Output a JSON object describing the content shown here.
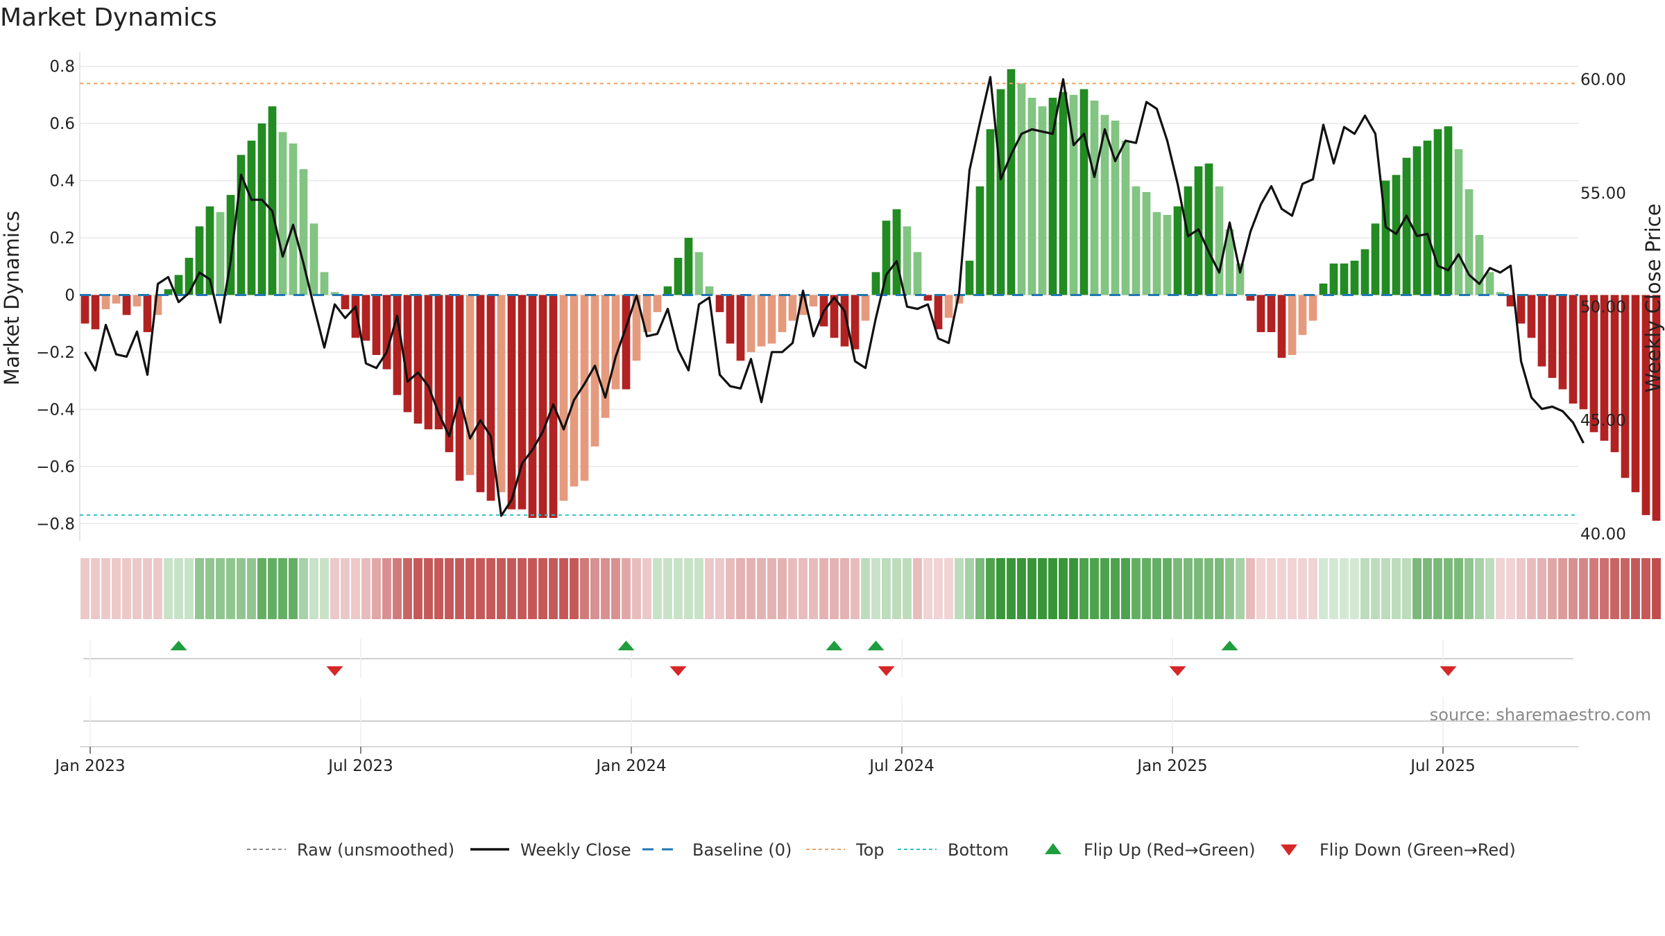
{
  "chart_data": {
    "type": "bar",
    "title": "Market Dynamics",
    "ylabel_left": "Market Dynamics",
    "ylabel_right": "Weekly Close Price",
    "source_text": "source: sharemaestro.com",
    "ylim_left": [
      -0.86,
      0.85
    ],
    "ylim_right": [
      39.7,
      61.2
    ],
    "left_ticks": [
      {
        "v": 0.8,
        "label": "0.8"
      },
      {
        "v": 0.6,
        "label": "0.6"
      },
      {
        "v": 0.4,
        "label": "0.4"
      },
      {
        "v": 0.2,
        "label": "0.2"
      },
      {
        "v": 0.0,
        "label": "0"
      },
      {
        "v": -0.2,
        "label": "−0.2"
      },
      {
        "v": -0.4,
        "label": "−0.4"
      },
      {
        "v": -0.6,
        "label": "−0.6"
      },
      {
        "v": -0.8,
        "label": "−0.8"
      }
    ],
    "right_ticks": [
      {
        "v": 60,
        "label": "60.00"
      },
      {
        "v": 55,
        "label": "55.00"
      },
      {
        "v": 50,
        "label": "50.00"
      },
      {
        "v": 45,
        "label": "45.00"
      },
      {
        "v": 40,
        "label": "40.00"
      }
    ],
    "x_ticks": [
      {
        "week": 1,
        "label": "Jan 2023"
      },
      {
        "week": 27,
        "label": "Jul 2023"
      },
      {
        "week": 53,
        "label": "Jan 2024"
      },
      {
        "week": 79,
        "label": "Jul 2024"
      },
      {
        "week": 105,
        "label": "Jan 2025"
      },
      {
        "week": 131,
        "label": "Jul 2025"
      }
    ],
    "x_range": [
      0,
      144
    ],
    "top_level": 0.74,
    "bottom_level": -0.77,
    "baseline": 0,
    "colors": {
      "green_strong": "#228b22",
      "green_fading": "#82c482",
      "red_strong": "#b22222",
      "red_fading": "#e59a7e",
      "weekly_close": "#111111",
      "raw": "#888888",
      "baseline": "#1f77b4",
      "top": "#f0a060",
      "bottom": "#30c0c8",
      "flip_up": "#1f9e3f",
      "flip_down": "#d62728"
    },
    "momentum": [
      -0.1,
      -0.12,
      -0.05,
      -0.03,
      -0.07,
      -0.04,
      -0.13,
      -0.07,
      0.02,
      0.07,
      0.13,
      0.24,
      0.31,
      0.29,
      0.35,
      0.49,
      0.54,
      0.6,
      0.66,
      0.57,
      0.53,
      0.44,
      0.25,
      0.08,
      0.01,
      -0.05,
      -0.15,
      -0.16,
      -0.21,
      -0.26,
      -0.35,
      -0.41,
      -0.45,
      -0.47,
      -0.47,
      -0.55,
      -0.65,
      -0.63,
      -0.69,
      -0.72,
      -0.69,
      -0.75,
      -0.75,
      -0.78,
      -0.78,
      -0.78,
      -0.72,
      -0.67,
      -0.65,
      -0.53,
      -0.43,
      -0.33,
      -0.33,
      -0.23,
      -0.13,
      -0.06,
      0.03,
      0.13,
      0.2,
      0.15,
      0.03,
      -0.06,
      -0.17,
      -0.23,
      -0.2,
      -0.18,
      -0.17,
      -0.13,
      -0.09,
      -0.07,
      -0.04,
      -0.11,
      -0.15,
      -0.18,
      -0.19,
      -0.09,
      0.08,
      0.26,
      0.3,
      0.24,
      0.15,
      -0.02,
      -0.12,
      -0.08,
      -0.03,
      0.12,
      0.38,
      0.58,
      0.72,
      0.79,
      0.74,
      0.69,
      0.66,
      0.69,
      0.71,
      0.7,
      0.72,
      0.68,
      0.63,
      0.61,
      0.54,
      0.38,
      0.36,
      0.29,
      0.28,
      0.31,
      0.38,
      0.45,
      0.46,
      0.38,
      0.23,
      0.11,
      -0.02,
      -0.13,
      -0.13,
      -0.22,
      -0.21,
      -0.14,
      -0.09,
      0.04,
      0.11,
      0.11,
      0.12,
      0.16,
      0.25,
      0.4,
      0.42,
      0.48,
      0.52,
      0.54,
      0.58,
      0.59,
      0.51,
      0.37,
      0.21,
      0.08,
      0.01,
      -0.04,
      -0.1,
      -0.15,
      -0.25,
      -0.29,
      -0.33,
      -0.38,
      -0.4,
      -0.48,
      -0.51,
      -0.55,
      -0.64,
      -0.69,
      -0.77,
      -0.79
    ],
    "weekly_close": [
      48.0,
      47.2,
      49.2,
      47.9,
      47.8,
      48.9,
      47.0,
      51.0,
      51.3,
      50.2,
      50.6,
      51.5,
      51.2,
      49.3,
      52.0,
      55.8,
      54.7,
      54.7,
      54.2,
      52.2,
      53.6,
      51.9,
      50.0,
      48.2,
      50.1,
      49.5,
      50.0,
      47.5,
      47.3,
      48.0,
      49.6,
      46.7,
      47.1,
      46.5,
      45.3,
      44.3,
      46.0,
      44.2,
      45.0,
      44.3,
      40.8,
      41.5,
      43.1,
      43.7,
      44.5,
      45.7,
      44.6,
      45.9,
      46.6,
      47.4,
      46.0,
      47.8,
      49.1,
      50.5,
      48.7,
      48.8,
      49.9,
      48.1,
      47.2,
      50.1,
      50.4,
      47.0,
      46.5,
      46.4,
      47.7,
      45.8,
      48.0,
      48.0,
      48.4,
      50.7,
      48.7,
      49.8,
      50.4,
      49.8,
      47.6,
      47.3,
      49.5,
      51.4,
      52.0,
      50.0,
      49.9,
      50.1,
      48.6,
      48.4,
      50.6,
      56.0,
      58.1,
      60.1,
      55.6,
      56.7,
      57.6,
      57.8,
      57.7,
      57.6,
      60.0,
      57.1,
      57.6,
      55.7,
      57.8,
      56.4,
      57.3,
      57.2,
      59.0,
      58.7,
      57.3,
      55.4,
      53.1,
      53.4,
      52.4,
      51.5,
      53.7,
      51.5,
      53.3,
      54.5,
      55.3,
      54.3,
      54.0,
      55.4,
      55.6,
      58.0,
      56.3,
      57.9,
      57.6,
      58.4,
      57.6,
      53.5,
      53.2,
      54.0,
      53.1,
      53.2,
      51.8,
      51.6,
      52.3,
      51.4,
      51.0,
      51.7,
      51.5,
      51.8,
      47.6,
      46.0,
      45.5,
      45.6,
      45.4,
      44.9,
      44.0
    ]
  },
  "heat_strip": {
    "levels": [
      0.25,
      0.25,
      0.25,
      0.25,
      0.25,
      0.25,
      0.25,
      0.25,
      0.25,
      0.25,
      0.25,
      0.5,
      0.5,
      0.5,
      0.5,
      0.5,
      0.5,
      0.7,
      0.7,
      0.7,
      0.7,
      0.4,
      0.25,
      0.25,
      0.25,
      0.25,
      0.25,
      0.3,
      0.4,
      0.5,
      0.6,
      0.7,
      0.75,
      0.75,
      0.75,
      0.75,
      0.75,
      0.75,
      0.75,
      0.75,
      0.75,
      0.75,
      0.75,
      0.75,
      0.75,
      0.75,
      0.75,
      0.75,
      0.6,
      0.5,
      0.5,
      0.5,
      0.4,
      0.3,
      0.25,
      0.25,
      0.25,
      0.25,
      0.25,
      0.25,
      0.25,
      0.25,
      0.3,
      0.35,
      0.35,
      0.35,
      0.35,
      0.35,
      0.3,
      0.3,
      0.3,
      0.35,
      0.35,
      0.35,
      0.3,
      0.3,
      0.25,
      0.3,
      0.3,
      0.3,
      0.3,
      0.2,
      0.2,
      0.2,
      0.3,
      0.4,
      0.6,
      0.8,
      0.9,
      0.9,
      0.9,
      0.9,
      0.9,
      0.9,
      0.9,
      0.9,
      0.8,
      0.8,
      0.8,
      0.8,
      0.8,
      0.7,
      0.7,
      0.7,
      0.7,
      0.6,
      0.6,
      0.6,
      0.6,
      0.6,
      0.5,
      0.4,
      0.3,
      0.2,
      0.2,
      0.2,
      0.2,
      0.2,
      0.2,
      0.2,
      0.2,
      0.2,
      0.2,
      0.3,
      0.3,
      0.3,
      0.3,
      0.3,
      0.6,
      0.6,
      0.6,
      0.6,
      0.6,
      0.5,
      0.4,
      0.3,
      0.2,
      0.2,
      0.25,
      0.3,
      0.35,
      0.4,
      0.45,
      0.5,
      0.55,
      0.6,
      0.65,
      0.7,
      0.7,
      0.75,
      0.75,
      0.8
    ],
    "signs": [
      -1,
      -1,
      -1,
      -1,
      -1,
      -1,
      -1,
      -1,
      1,
      1,
      1,
      1,
      1,
      1,
      1,
      1,
      1,
      1,
      1,
      1,
      1,
      1,
      1,
      1,
      -1,
      -1,
      -1,
      -1,
      -1,
      -1,
      -1,
      -1,
      -1,
      -1,
      -1,
      -1,
      -1,
      -1,
      -1,
      -1,
      -1,
      -1,
      -1,
      -1,
      -1,
      -1,
      -1,
      -1,
      -1,
      -1,
      -1,
      -1,
      -1,
      -1,
      -1,
      1,
      1,
      1,
      1,
      1,
      -1,
      -1,
      -1,
      -1,
      -1,
      -1,
      -1,
      -1,
      -1,
      -1,
      -1,
      -1,
      -1,
      -1,
      -1,
      1,
      1,
      1,
      1,
      1,
      -1,
      -1,
      -1,
      -1,
      1,
      1,
      1,
      1,
      1,
      1,
      1,
      1,
      1,
      1,
      1,
      1,
      1,
      1,
      1,
      1,
      1,
      1,
      1,
      1,
      1,
      1,
      1,
      1,
      1,
      1,
      1,
      1,
      -1,
      -1,
      -1,
      -1,
      -1,
      -1,
      -1,
      1,
      1,
      1,
      1,
      1,
      1,
      1,
      1,
      1,
      1,
      1,
      1,
      1,
      1,
      1,
      1,
      1,
      -1,
      -1,
      -1,
      -1,
      -1,
      -1,
      -1,
      -1,
      -1,
      -1,
      -1,
      -1,
      -1,
      -1,
      -1,
      -1,
      -1
    ]
  },
  "flips": {
    "up_weeks": [
      9,
      52,
      72,
      76,
      110
    ],
    "down_weeks": [
      24,
      57,
      77,
      105,
      131
    ]
  },
  "legend": [
    {
      "key": "raw",
      "label": "Raw (unsmoothed)"
    },
    {
      "key": "weekly_close",
      "label": "Weekly Close"
    },
    {
      "key": "baseline",
      "label": "Baseline (0)"
    },
    {
      "key": "top",
      "label": "Top"
    },
    {
      "key": "bottom",
      "label": "Bottom"
    },
    {
      "key": "flip_up",
      "label": "Flip Up (Red→Green)"
    },
    {
      "key": "flip_down",
      "label": "Flip Down (Green→Red)"
    }
  ]
}
